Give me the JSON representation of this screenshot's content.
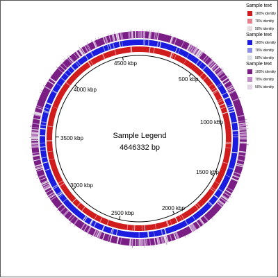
{
  "center": {
    "title": "Sample Legend",
    "subtitle": "4646332 bp"
  },
  "ticks": [
    {
      "label": "500 kbp"
    },
    {
      "label": "1000 kbp"
    },
    {
      "label": "1500 kbp"
    },
    {
      "label": "2000 kbp"
    },
    {
      "label": "2500 kbp"
    },
    {
      "label": "3000 kbp"
    },
    {
      "label": "3500 kbp"
    },
    {
      "label": "4000 kbp"
    },
    {
      "label": "4500 kbp"
    }
  ],
  "legend": [
    {
      "title": "Sample text",
      "rows": [
        {
          "label": "100% identity",
          "color": "#d01c1c"
        },
        {
          "label": "70% identity",
          "color": "#e6808c"
        },
        {
          "label": "50% identity",
          "color": "#e3dde0"
        }
      ]
    },
    {
      "title": "Sample text",
      "rows": [
        {
          "label": "100% identity",
          "color": "#1c1ce0"
        },
        {
          "label": "70% identity",
          "color": "#8a8ee6"
        },
        {
          "label": "50% identity",
          "color": "#dedee6"
        }
      ]
    },
    {
      "title": "Sample text",
      "rows": [
        {
          "label": "100% identity",
          "color": "#7a1e86"
        },
        {
          "label": "70% identity",
          "color": "#bf8cc8"
        },
        {
          "label": "50% identity",
          "color": "#e2d6e4"
        }
      ]
    }
  ]
}
